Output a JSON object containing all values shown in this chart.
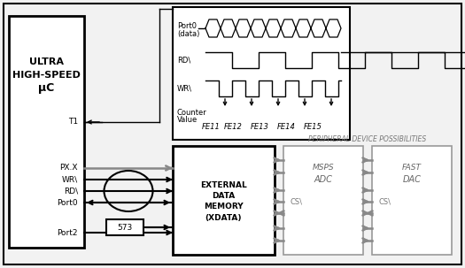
{
  "bg_color": "#f2f2f2",
  "uc_text": [
    "ULTRA",
    "HIGH-SPEED",
    "μC"
  ],
  "xdata_text": [
    "EXTERNAL",
    "DATA",
    "MEMORY",
    "(XDATA)"
  ],
  "adc_text": [
    "MSPS",
    "ADC"
  ],
  "dac_text": [
    "FAST",
    "DAC"
  ],
  "counter_values": [
    "FE11",
    "FE12",
    "FE13",
    "FE14",
    "FE15"
  ],
  "peripheral_label": "PERIPHERAL DEVICE POSSIBILITIES"
}
